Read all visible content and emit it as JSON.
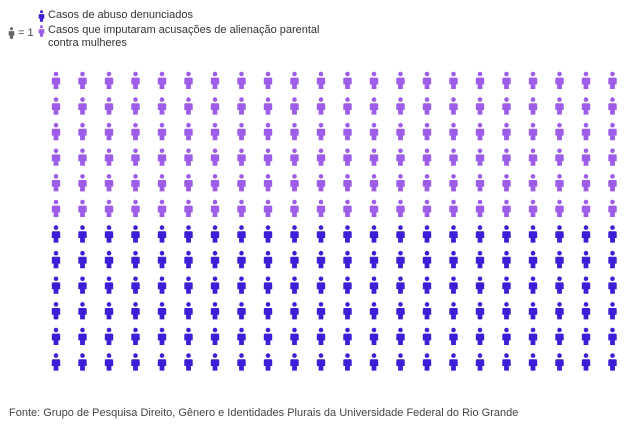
{
  "chart_data": {
    "type": "pictogram",
    "unit_value": "= 1",
    "series": [
      {
        "name": "Casos de abuso denunciados",
        "color": "#3b1fd6"
      },
      {
        "name": "Casos que imputaram acusações de alienação parental contra mulheres",
        "color": "#9d5de8"
      }
    ],
    "columns": [
      {
        "first": 6,
        "second": 6
      },
      {
        "first": 6,
        "second": 6
      },
      {
        "first": 6,
        "second": 6
      },
      {
        "first": 6,
        "second": 6
      },
      {
        "first": 6,
        "second": 6
      },
      {
        "first": 6,
        "second": 6
      },
      {
        "first": 6,
        "second": 6
      },
      {
        "first": 6,
        "second": 6
      },
      {
        "first": 6,
        "second": 6
      },
      {
        "first": 6,
        "second": 6
      },
      {
        "first": 6,
        "second": 6
      },
      {
        "first": 6,
        "second": 6
      },
      {
        "first": 6,
        "second": 6
      },
      {
        "first": 6,
        "second": 6
      },
      {
        "first": 6,
        "second": 6
      },
      {
        "first": 6,
        "second": 6
      },
      {
        "first": 6,
        "second": 6
      },
      {
        "first": 6,
        "second": 6
      },
      {
        "first": 6,
        "second": 6
      },
      {
        "first": 6,
        "second": 6
      },
      {
        "first": 6,
        "second": 6
      },
      {
        "first": 6,
        "second": 6
      }
    ],
    "legend_position": "top-left"
  },
  "legend": {
    "unit_label": "= 1",
    "item_1": "Casos de abuso denunciados",
    "item_2": "Casos que imputaram acusações de alienação parental contra mulheres"
  },
  "source": "Fonte: Grupo de Pesquisa Direito, Gênero e Identidades Plurais da Universidade Federal do Rio Grande"
}
